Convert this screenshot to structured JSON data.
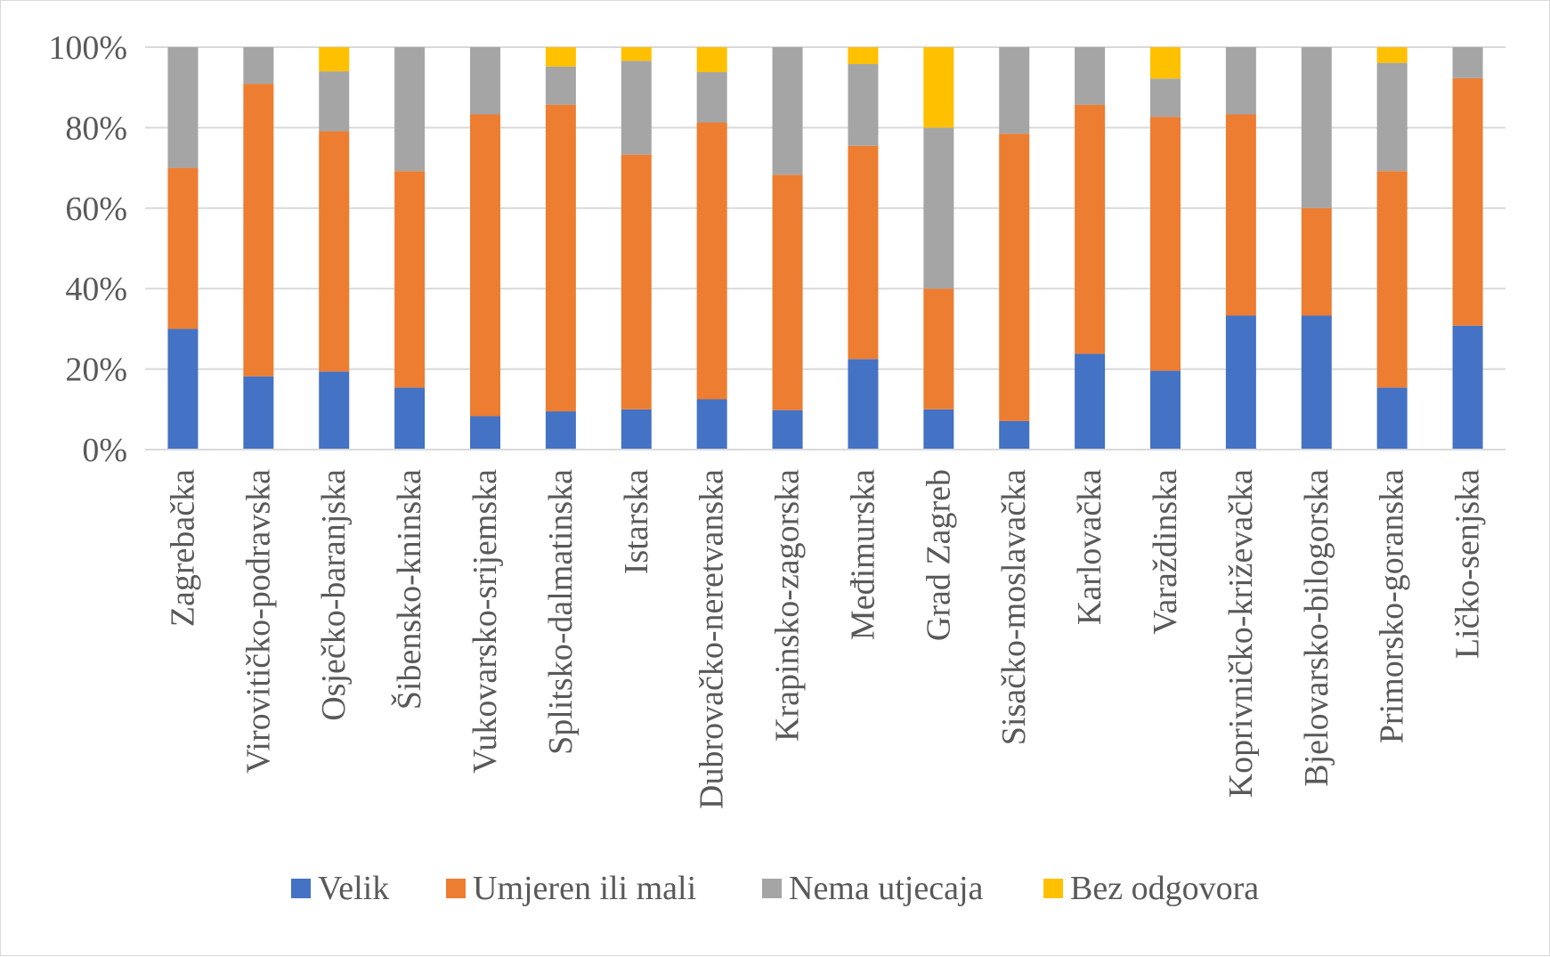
{
  "chart_data": {
    "type": "bar",
    "stacked": true,
    "percent": true,
    "title": "",
    "xlabel": "",
    "ylabel": "",
    "ylim": [
      0,
      100
    ],
    "y_ticks": [
      "0%",
      "20%",
      "40%",
      "60%",
      "80%",
      "100%"
    ],
    "grid": true,
    "legend_position": "bottom",
    "categories": [
      "Zagrebačka",
      "Virovitičko-podravska",
      "Osječko-baranjska",
      "Šibensko-kninska",
      "Vukovarsko-srijemska",
      "Splitsko-dalmatinska",
      "Istarska",
      "Dubrovačko-neretvanska",
      "Krapinsko-zagorska",
      "Međimurska",
      "Grad Zagreb",
      "Sisačko-moslavačka",
      "Karlovačka",
      "Varaždinska",
      "Koprivničko-križevačka",
      "Bjelovarsko-bilogorska",
      "Primorsko-goranska",
      "Ličko-senjska"
    ],
    "series": [
      {
        "name": "Velik",
        "color": "#4472c4",
        "values": [
          30,
          18.2,
          19.4,
          15.4,
          8.3,
          9.5,
          10,
          12.5,
          9.8,
          22.5,
          10,
          7.1,
          23.8,
          19.6,
          33.3,
          33.3,
          15.4,
          30.8
        ]
      },
      {
        "name": "Umjeren ili mali",
        "color": "#ed7d31",
        "values": [
          40,
          72.7,
          59.7,
          53.8,
          75,
          76.2,
          63.3,
          68.8,
          58.5,
          53,
          30,
          71.4,
          61.9,
          63.1,
          50,
          26.7,
          53.8,
          61.5
        ]
      },
      {
        "name": "Nema utjecaja",
        "color": "#a5a5a5",
        "values": [
          30,
          9.1,
          14.9,
          30.8,
          16.7,
          9.5,
          23.3,
          12.5,
          31.7,
          20.3,
          40,
          21.5,
          14.3,
          9.5,
          16.7,
          40,
          26.9,
          7.7
        ]
      },
      {
        "name": "Bez odgovora",
        "color": "#ffc000",
        "values": [
          0,
          0,
          6,
          0,
          0,
          4.8,
          3.4,
          6.2,
          0,
          4.2,
          20,
          0,
          0,
          7.8,
          0,
          0,
          3.9,
          0
        ]
      }
    ]
  }
}
